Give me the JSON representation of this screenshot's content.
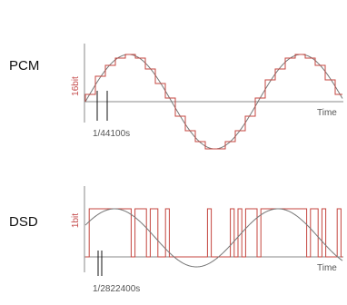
{
  "panels": {
    "pcm": {
      "title": "PCM",
      "bit_label": "16bit",
      "time_label": "Time",
      "interval_label": "1/44100s"
    },
    "dsd": {
      "title": "DSD",
      "bit_label": "1bit",
      "time_label": "Time",
      "interval_label": "1/2822400s"
    }
  },
  "colors": {
    "signal": "#c4463f",
    "wave": "#777777",
    "axis": "#888888",
    "text": "#111111"
  }
}
